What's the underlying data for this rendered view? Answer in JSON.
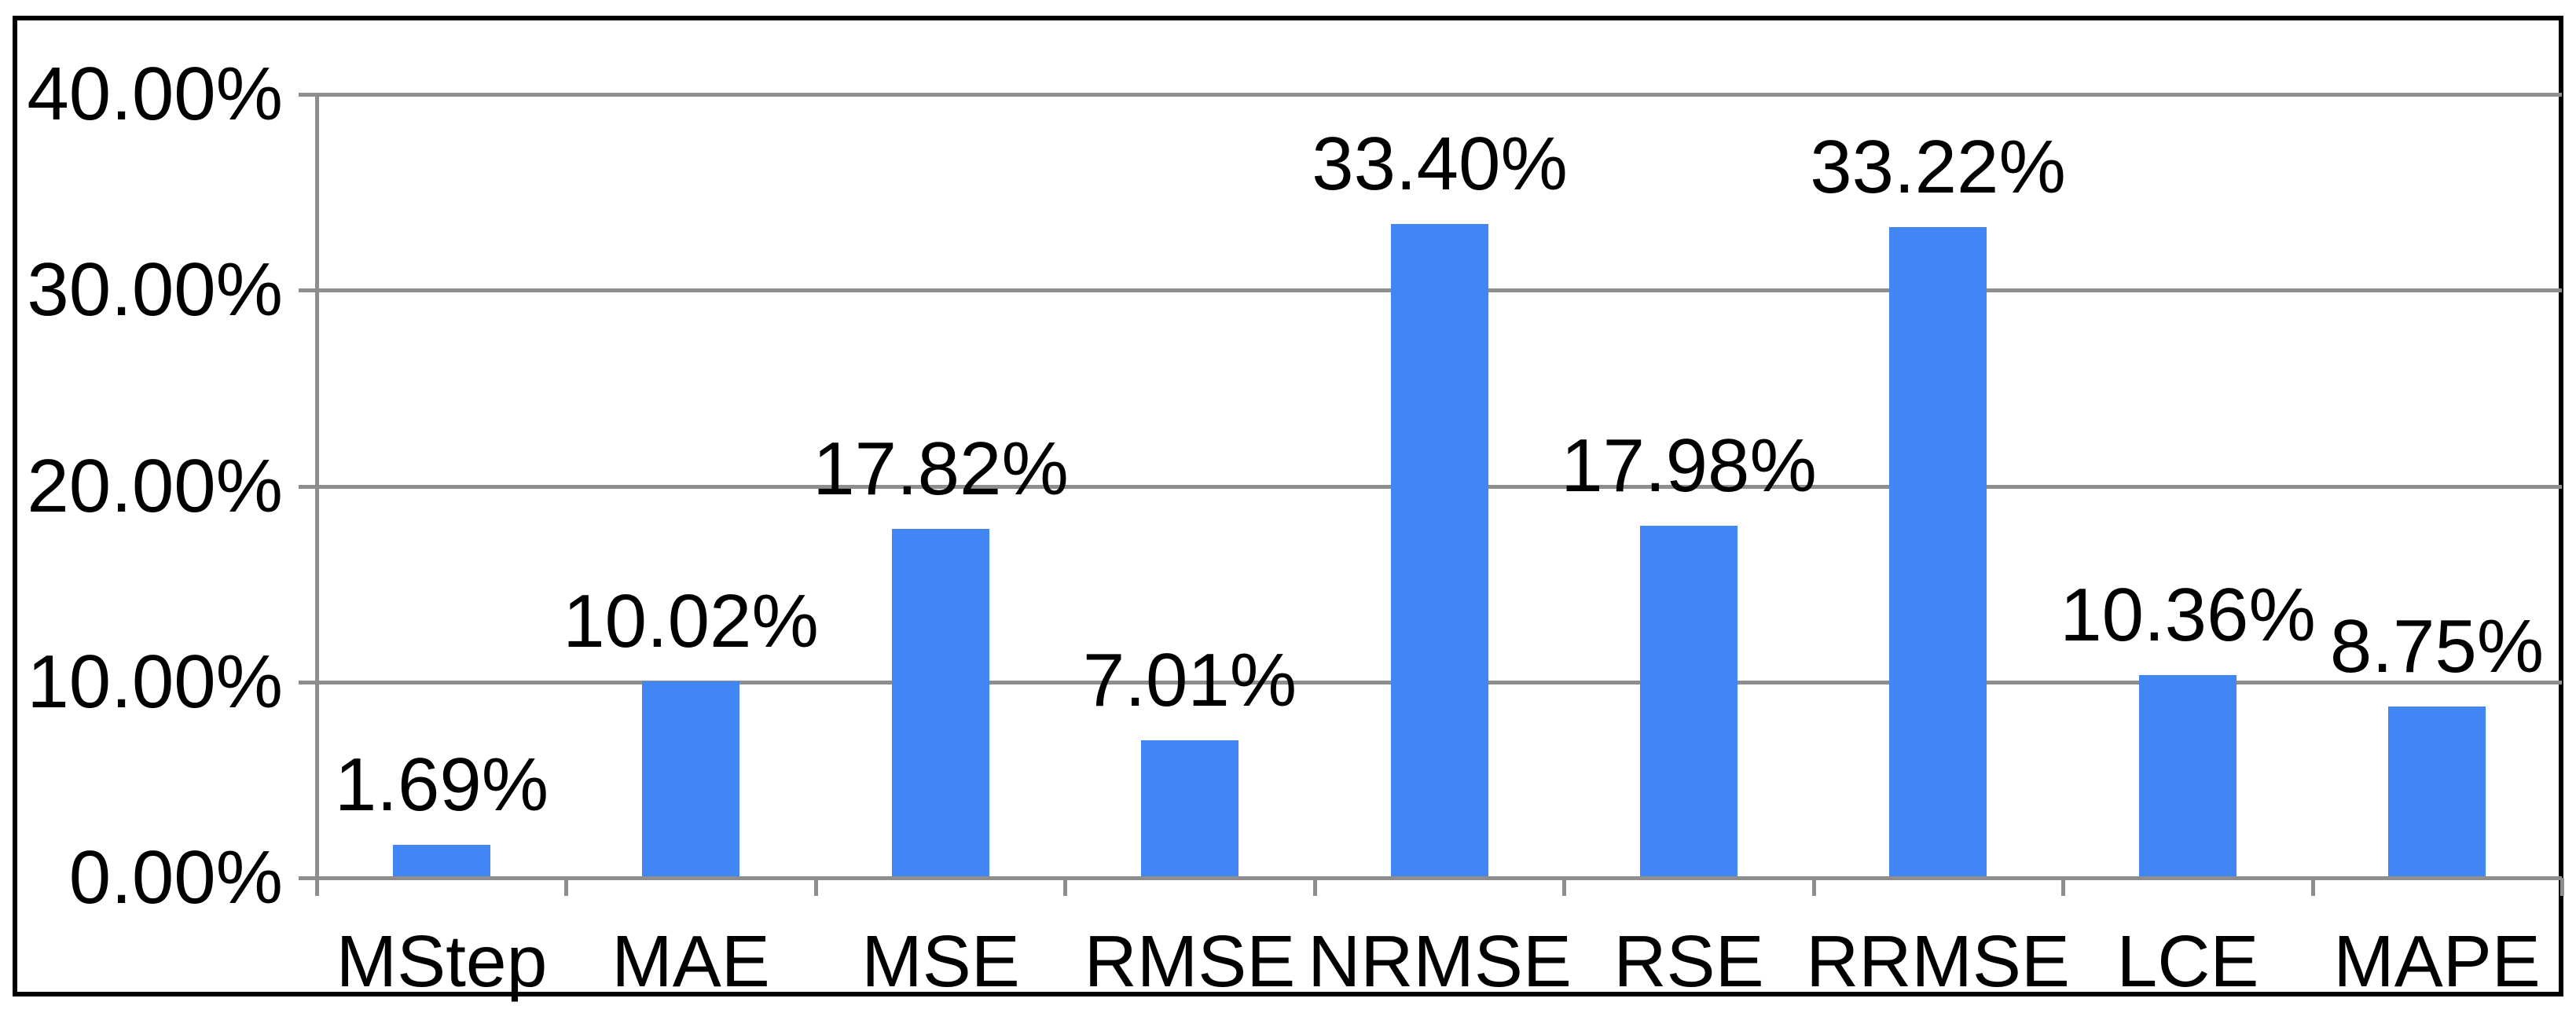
{
  "chart_data": {
    "type": "bar",
    "categories": [
      "MStep",
      "MAE",
      "MSE",
      "RMSE",
      "NRMSE",
      "RSE",
      "RRMSE",
      "LCE",
      "MAPE"
    ],
    "values": [
      1.69,
      10.02,
      17.82,
      7.01,
      33.4,
      17.98,
      33.22,
      10.36,
      8.75
    ],
    "value_labels": [
      "1.69%",
      "10.02%",
      "17.82%",
      "7.01%",
      "33.40%",
      "17.98%",
      "33.22%",
      "10.36%",
      "8.75%"
    ],
    "title": "",
    "xlabel": "",
    "ylabel": "",
    "ylim": [
      0,
      40
    ],
    "y_ticks": [
      {
        "value": 40,
        "label": "40.00%"
      },
      {
        "value": 30,
        "label": "30.00%"
      },
      {
        "value": 20,
        "label": "20.00%"
      },
      {
        "value": 10,
        "label": "10.00%"
      },
      {
        "value": 0,
        "label": "0.00%"
      }
    ],
    "grid": true,
    "legend_position": "none",
    "colors": {
      "bar": "#4285F4",
      "gridline": "#8E8E8E",
      "axis": "#8E8E8E",
      "frame": "#000000",
      "text": "#000000",
      "background": "#FFFFFF"
    }
  }
}
